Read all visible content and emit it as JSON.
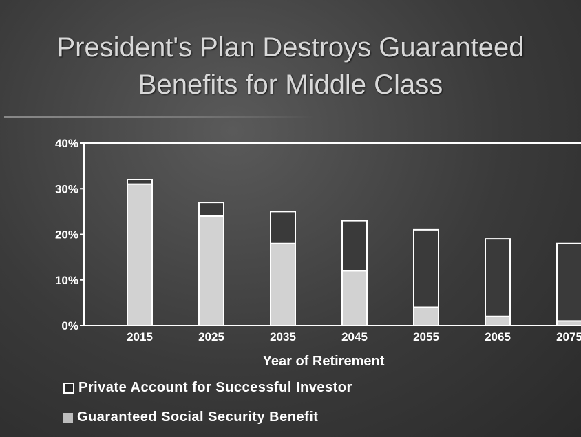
{
  "title_line1": "President's Plan Destroys Guaranteed",
  "title_line2": "Benefits for Middle Class",
  "chart_data": {
    "type": "bar",
    "stacked": true,
    "categories": [
      "2015",
      "2025",
      "2035",
      "2045",
      "2055",
      "2065",
      "2075"
    ],
    "series": [
      {
        "name": "Guaranteed Social Security Benefit",
        "values": [
          31,
          24,
          18,
          12,
          4,
          2,
          1
        ],
        "color": "#d2d2d2"
      },
      {
        "name": "Private Account for Successful Investor",
        "values": [
          1,
          3,
          7,
          11,
          17,
          17,
          17
        ],
        "color": "#3a3a3a"
      }
    ],
    "xlabel": "Year of Retirement",
    "ylabel": "",
    "ylim": [
      0,
      40
    ],
    "yticks": [
      "0%",
      "10%",
      "20%",
      "30%",
      "40%"
    ],
    "grid": false,
    "legend_position": "bottom-left"
  },
  "legend": {
    "item1_label": "Private Account for Successful Investor",
    "item2_label": "Guaranteed Social Security Benefit",
    "item1_color": "#2a2a2a",
    "item2_color": "#bdbdbd"
  }
}
